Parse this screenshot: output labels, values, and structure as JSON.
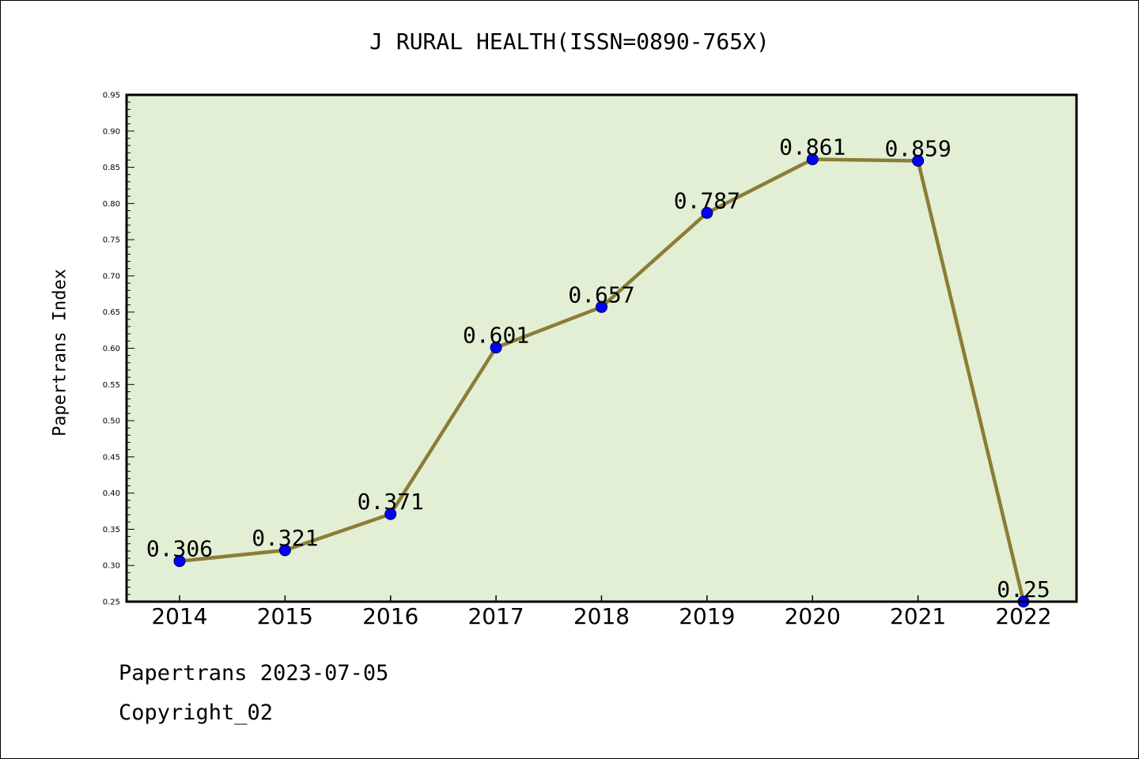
{
  "chart_data": {
    "type": "line",
    "title": "J RURAL HEALTH(ISSN=0890-765X)",
    "xlabel": "",
    "ylabel": "Papertrans Index",
    "categories": [
      "2014",
      "2015",
      "2016",
      "2017",
      "2018",
      "2019",
      "2020",
      "2021",
      "2022"
    ],
    "series": [
      {
        "values": [
          0.306,
          0.321,
          0.371,
          0.601,
          0.657,
          0.787,
          0.861,
          0.859,
          0.25
        ],
        "data_labels": [
          "0.306",
          "0.321",
          "0.371",
          "0.601",
          "0.657",
          "0.787",
          "0.861",
          "0.859",
          "0.25"
        ],
        "line_color": "#8b7d35",
        "marker_color": "#0000ff"
      }
    ],
    "ylim": [
      0.25,
      0.95
    ],
    "yticks": [
      "0.25",
      "0.30",
      "0.35",
      "0.40",
      "0.45",
      "0.50",
      "0.55",
      "0.60",
      "0.65",
      "0.70",
      "0.75",
      "0.80",
      "0.85",
      "0.90",
      "0.95"
    ],
    "plot_background": "#e2efd5",
    "grid": false,
    "legend": "none"
  },
  "footer": {
    "date_text": "Papertrans 2023-07-05",
    "copyright_text": "Copyright_02"
  }
}
